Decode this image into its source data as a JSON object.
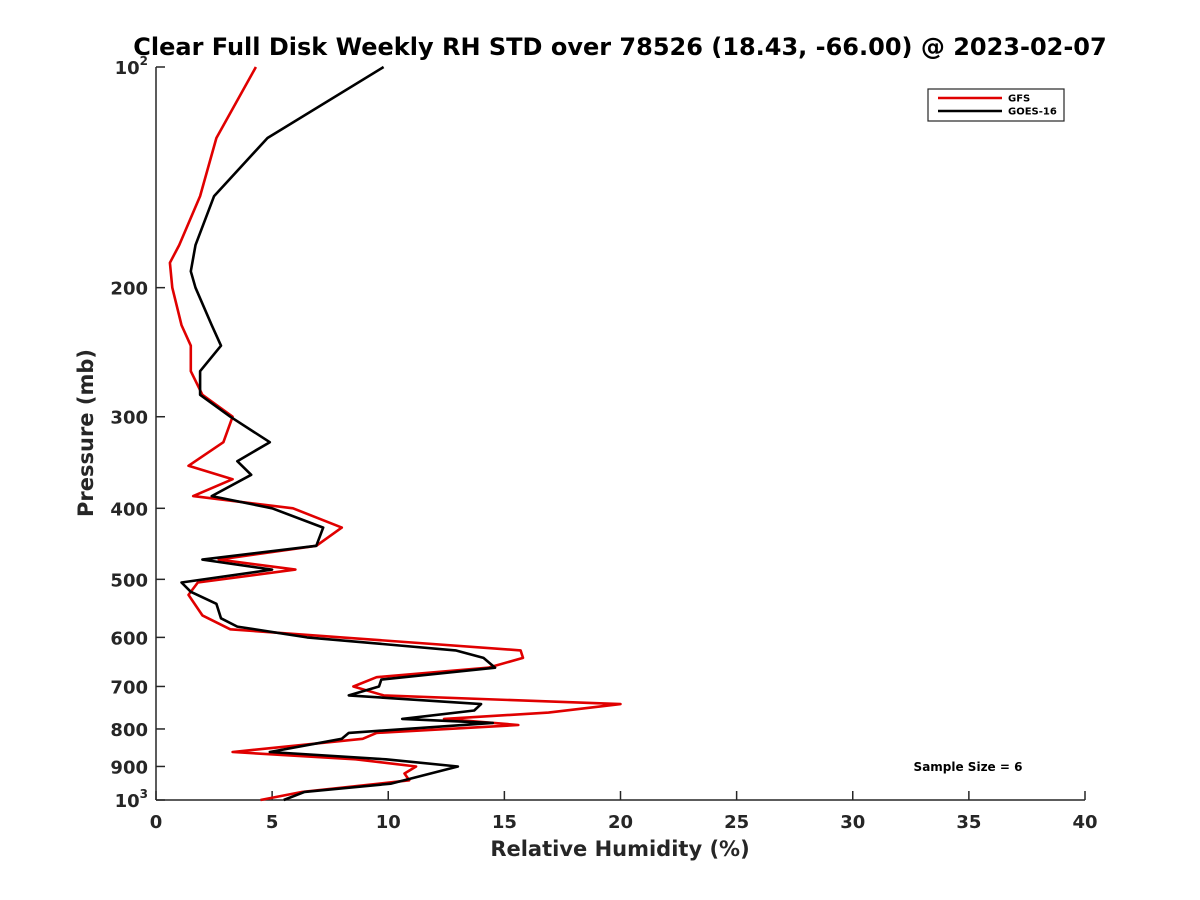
{
  "chart_data": {
    "type": "line",
    "title": "Clear Full Disk Weekly RH STD over 78526 (18.43, -66.00) @ 2023-02-07",
    "xlabel": "Relative Humidity (%)",
    "ylabel": "Pressure (mb)",
    "xlim": [
      0,
      40
    ],
    "ylim": [
      100,
      1000
    ],
    "yscale": "log",
    "y_reversed": true,
    "grid": false,
    "x_ticks": [
      0,
      5,
      10,
      15,
      20,
      25,
      30,
      35,
      40
    ],
    "x_tick_labels": [
      "0",
      "5",
      "10",
      "15",
      "20",
      "25",
      "30",
      "35",
      "40"
    ],
    "y_ticks": [
      100,
      200,
      300,
      400,
      500,
      600,
      700,
      800,
      900,
      1000
    ],
    "y_tick_labels": [
      {
        "base": "10",
        "exp": "2"
      },
      {
        "base": "200"
      },
      {
        "base": "300"
      },
      {
        "base": "400"
      },
      {
        "base": "500"
      },
      {
        "base": "600"
      },
      {
        "base": "700"
      },
      {
        "base": "800"
      },
      {
        "base": "900"
      },
      {
        "base": "10",
        "exp": "3"
      }
    ],
    "legend_position": "top-right",
    "annotation": "Sample Size = 6",
    "series": [
      {
        "name": "GFS",
        "color": "#e00000",
        "points": [
          [
            4.3,
            100
          ],
          [
            2.6,
            125
          ],
          [
            1.9,
            150
          ],
          [
            1.0,
            175
          ],
          [
            0.6,
            185
          ],
          [
            0.7,
            200
          ],
          [
            1.1,
            225
          ],
          [
            1.5,
            240
          ],
          [
            1.5,
            260
          ],
          [
            2.0,
            280
          ],
          [
            3.3,
            300
          ],
          [
            2.9,
            325
          ],
          [
            1.4,
            350
          ],
          [
            3.3,
            365
          ],
          [
            1.6,
            385
          ],
          [
            5.9,
            400
          ],
          [
            8.0,
            425
          ],
          [
            6.9,
            450
          ],
          [
            2.7,
            470
          ],
          [
            6.0,
            485
          ],
          [
            1.8,
            505
          ],
          [
            1.4,
            525
          ],
          [
            2.0,
            560
          ],
          [
            3.2,
            585
          ],
          [
            8.0,
            600
          ],
          [
            15.7,
            625
          ],
          [
            15.8,
            640
          ],
          [
            14.3,
            660
          ],
          [
            9.5,
            680
          ],
          [
            8.5,
            700
          ],
          [
            9.8,
            720
          ],
          [
            20.0,
            740
          ],
          [
            16.9,
            760
          ],
          [
            12.4,
            775
          ],
          [
            15.6,
            790
          ],
          [
            9.5,
            810
          ],
          [
            8.9,
            825
          ],
          [
            3.3,
            860
          ],
          [
            8.6,
            880
          ],
          [
            11.2,
            900
          ],
          [
            10.7,
            920
          ],
          [
            10.9,
            940
          ],
          [
            9.6,
            950
          ],
          [
            6.3,
            975
          ],
          [
            4.5,
            1000
          ]
        ]
      },
      {
        "name": "GOES-16",
        "color": "#000000",
        "points": [
          [
            9.8,
            100
          ],
          [
            4.8,
            125
          ],
          [
            2.5,
            150
          ],
          [
            1.7,
            175
          ],
          [
            1.5,
            190
          ],
          [
            1.7,
            200
          ],
          [
            2.4,
            225
          ],
          [
            2.8,
            240
          ],
          [
            1.9,
            260
          ],
          [
            1.9,
            280
          ],
          [
            3.2,
            300
          ],
          [
            4.9,
            325
          ],
          [
            3.5,
            345
          ],
          [
            4.1,
            360
          ],
          [
            2.4,
            385
          ],
          [
            5.0,
            400
          ],
          [
            7.2,
            425
          ],
          [
            6.9,
            450
          ],
          [
            2.0,
            470
          ],
          [
            5.0,
            485
          ],
          [
            1.1,
            505
          ],
          [
            1.5,
            520
          ],
          [
            2.6,
            540
          ],
          [
            2.8,
            565
          ],
          [
            3.5,
            580
          ],
          [
            6.5,
            600
          ],
          [
            12.9,
            625
          ],
          [
            14.1,
            640
          ],
          [
            14.6,
            660
          ],
          [
            9.7,
            685
          ],
          [
            9.6,
            700
          ],
          [
            8.3,
            720
          ],
          [
            14.0,
            740
          ],
          [
            13.7,
            755
          ],
          [
            10.6,
            775
          ],
          [
            14.5,
            785
          ],
          [
            8.3,
            810
          ],
          [
            8.0,
            825
          ],
          [
            4.9,
            860
          ],
          [
            9.9,
            880
          ],
          [
            13.0,
            900
          ],
          [
            10.1,
            950
          ],
          [
            6.4,
            975
          ],
          [
            5.5,
            1000
          ]
        ]
      }
    ]
  }
}
